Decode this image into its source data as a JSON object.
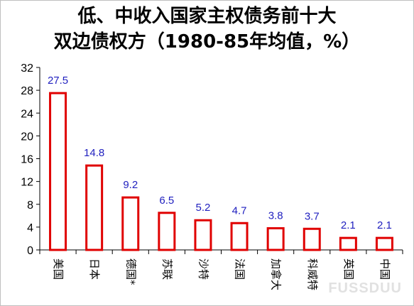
{
  "title_lines": [
    "低、中收入国家主权债务前十大",
    "双边债权方（1980-85年均值，%）"
  ],
  "chart_data": {
    "type": "bar",
    "categories": [
      "美国",
      "日本",
      "德国*",
      "苏联",
      "沙特",
      "法国",
      "加拿大",
      "科威特",
      "英国",
      "中国"
    ],
    "values": [
      27.5,
      14.8,
      9.2,
      6.5,
      5.2,
      4.7,
      3.8,
      3.7,
      2.1,
      2.1
    ],
    "value_labels": [
      "27.5",
      "14.8",
      "9.2",
      "6.5",
      "5.2",
      "4.7",
      "3.8",
      "3.7",
      "2.1",
      "2.1"
    ],
    "ylim": [
      0,
      32
    ],
    "yticks": [
      "0",
      "4",
      "8",
      "12",
      "16",
      "20",
      "24",
      "28",
      "32"
    ],
    "bar_fill": "#ffffff",
    "bar_stroke": "#e00000",
    "label_color": "#1f1fbf",
    "grid": false,
    "legend": "none"
  },
  "watermark": "FUSSDUU"
}
